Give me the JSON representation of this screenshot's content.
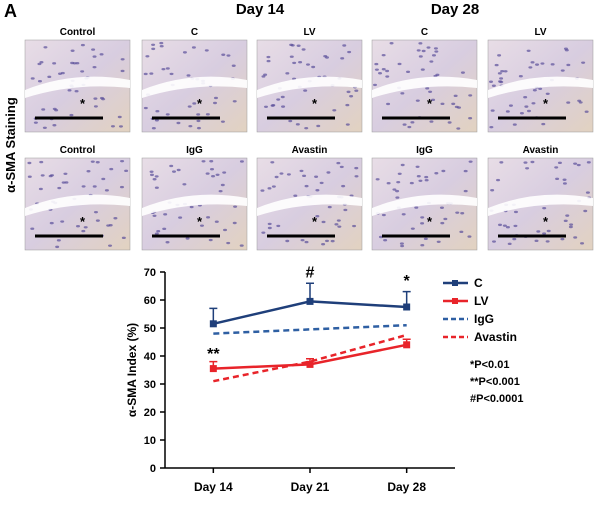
{
  "figure_label": "A",
  "side_label": "α-SMA Staining",
  "column_headers": [
    "Day 14",
    "Day 28"
  ],
  "panels": [
    [
      {
        "label": "Control",
        "marker": "*"
      },
      {
        "label": "C",
        "marker": "*"
      },
      {
        "label": "LV",
        "marker": "*"
      },
      {
        "label": "C",
        "marker": "*"
      },
      {
        "label": "LV",
        "marker": "*"
      }
    ],
    [
      {
        "label": "Control",
        "marker": "*"
      },
      {
        "label": "IgG",
        "marker": "*"
      },
      {
        "label": "Avastin",
        "marker": "*"
      },
      {
        "label": "IgG",
        "marker": "*"
      },
      {
        "label": "Avastin",
        "marker": "*"
      }
    ]
  ],
  "chart_data": {
    "type": "line",
    "y_label": "α-SMA Index (%)",
    "categories": [
      "Day 14",
      "Day 21",
      "Day 28"
    ],
    "ylim": [
      0,
      70
    ],
    "yticks": [
      0,
      10,
      20,
      30,
      40,
      50,
      60,
      70
    ],
    "series": [
      {
        "name": "C",
        "color": "#1f3f7a",
        "dash": false,
        "values": [
          51.5,
          59.5,
          57.5
        ],
        "errors": [
          5.5,
          6.5,
          5.5
        ]
      },
      {
        "name": "LV",
        "color": "#e8242a",
        "dash": false,
        "values": [
          35.5,
          37,
          44
        ],
        "errors": [
          2.5,
          2,
          2
        ]
      },
      {
        "name": "IgG",
        "color": "#2e5fa3",
        "dash": true,
        "values": [
          48,
          49.5,
          51
        ]
      },
      {
        "name": "Avastin",
        "color": "#e8242a",
        "dash": true,
        "values": [
          31,
          38,
          47.5
        ]
      }
    ],
    "annotations": [
      {
        "text": "**",
        "category": 0,
        "y": 39
      },
      {
        "text": "#",
        "category": 1,
        "y": 68
      },
      {
        "text": "*",
        "category": 2,
        "y": 65
      }
    ],
    "stats": [
      "*P<0.01",
      "**P<0.001",
      "#P<0.0001"
    ]
  }
}
